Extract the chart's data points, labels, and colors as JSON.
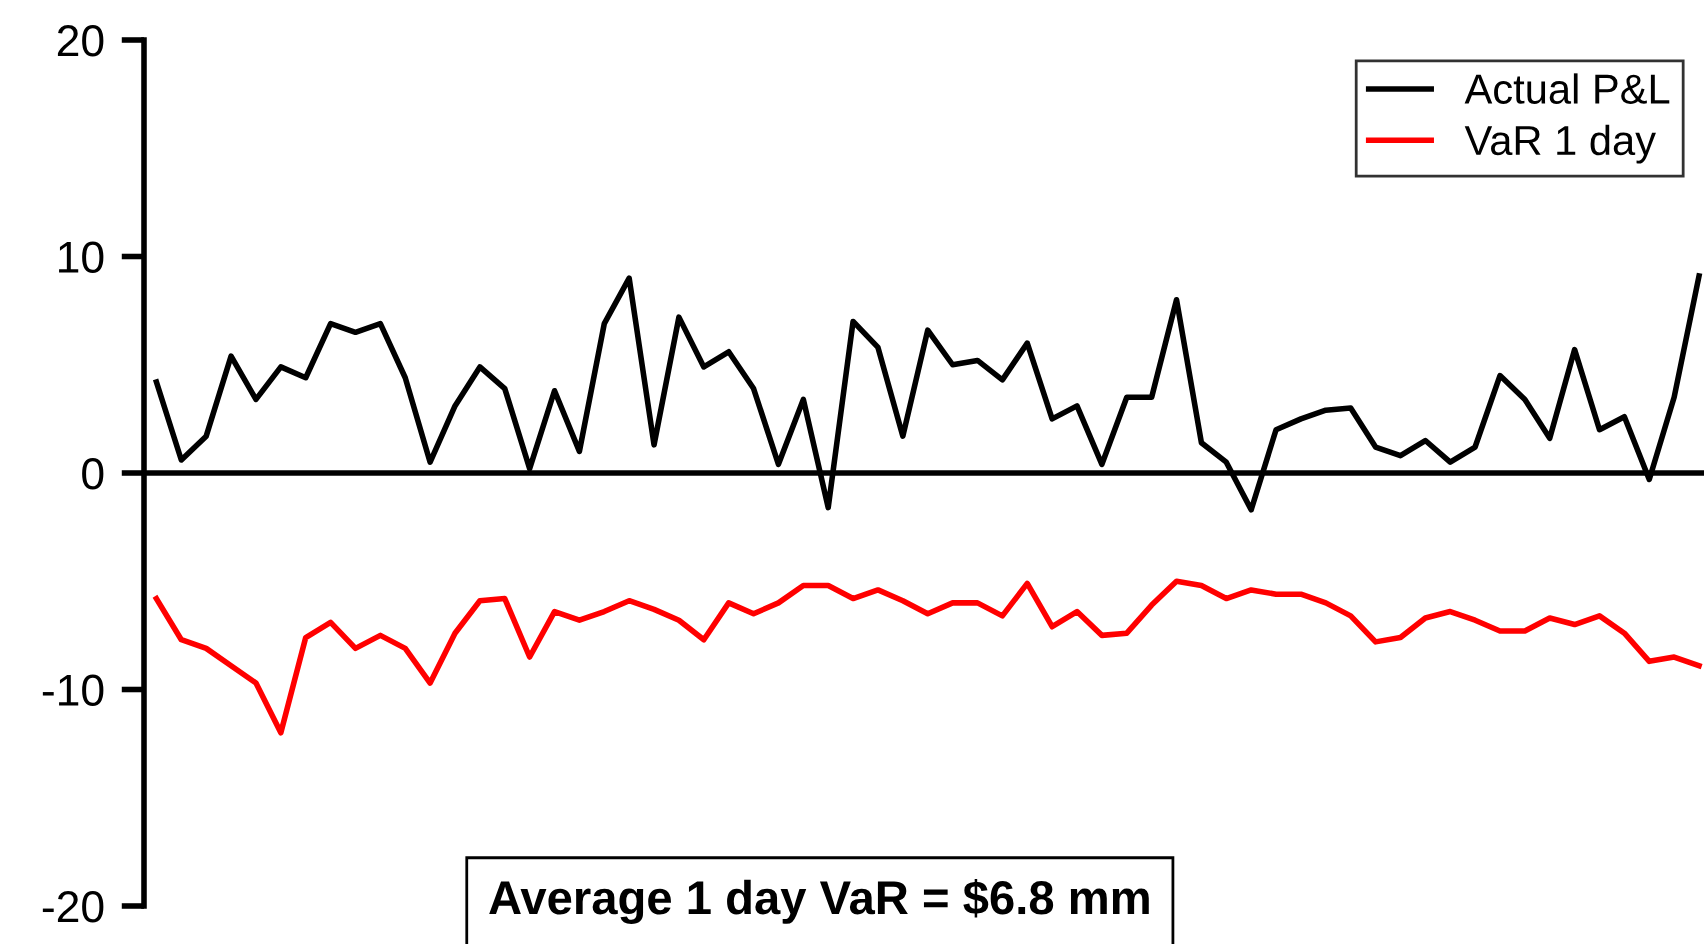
{
  "chart_data": {
    "type": "line",
    "categories": [
      null,
      null,
      null,
      null,
      null,
      null,
      null,
      null,
      null,
      null,
      null,
      null,
      null,
      null,
      null,
      null,
      null,
      null,
      null,
      null,
      null,
      null,
      null,
      null,
      null,
      null,
      null,
      null,
      null,
      null,
      null,
      null,
      null,
      null,
      null,
      null,
      null,
      null,
      null,
      null,
      null,
      null,
      null,
      null,
      null,
      null,
      null,
      null,
      null,
      null,
      null,
      null,
      null,
      null,
      null,
      null,
      null,
      null,
      null,
      null,
      null,
      null,
      null
    ],
    "series": [
      {
        "name": "Actual P&L",
        "color": "#000000",
        "values": [
          4.2,
          0.6,
          1.7,
          5.4,
          3.4,
          4.9,
          4.4,
          6.9,
          6.5,
          6.9,
          4.4,
          0.5,
          3.1,
          4.9,
          3.9,
          0.2,
          3.8,
          1.0,
          6.9,
          9.0,
          1.3,
          7.2,
          4.9,
          5.6,
          3.9,
          0.4,
          3.4,
          -1.6,
          7.0,
          5.8,
          1.7,
          6.6,
          5.0,
          5.2,
          4.3,
          6.0,
          2.5,
          3.1,
          0.4,
          3.5,
          3.5,
          8.0,
          1.4,
          0.5,
          -1.7,
          2.0,
          2.5,
          2.9,
          3.0,
          1.2,
          0.8,
          1.5,
          0.5,
          1.2,
          4.5,
          3.4,
          1.6,
          5.7,
          2.0,
          2.6,
          -0.3,
          3.5,
          9.1
        ]
      },
      {
        "name": "VaR 1 day",
        "color": "#ff0000",
        "values": [
          -5.8,
          -7.7,
          -8.1,
          -8.9,
          -9.7,
          -12.0,
          -7.6,
          -6.9,
          -8.1,
          -7.5,
          -8.1,
          -9.7,
          -7.4,
          -5.9,
          -5.8,
          -8.5,
          -6.4,
          -6.8,
          -6.4,
          -5.9,
          -6.3,
          -6.8,
          -7.7,
          -6.0,
          -6.5,
          -6.0,
          -5.2,
          -5.2,
          -5.8,
          -5.4,
          -5.9,
          -6.5,
          -6.0,
          -6.0,
          -6.6,
          -5.1,
          -7.1,
          -6.4,
          -7.5,
          -7.4,
          -6.1,
          -5.0,
          -5.2,
          -5.8,
          -5.4,
          -5.6,
          -5.6,
          -6.0,
          -6.6,
          -7.8,
          -7.6,
          -6.7,
          -6.4,
          -6.8,
          -7.3,
          -7.3,
          -6.7,
          -7.0,
          -6.6,
          -7.4,
          -8.7,
          -8.5,
          -8.9
        ]
      }
    ],
    "ylim": [
      -20,
      20
    ],
    "yticks": [
      -20,
      -10,
      0,
      10,
      20
    ],
    "grid": false,
    "ref_lines": [
      {
        "axis": "y",
        "value": 0,
        "color": "#000000"
      }
    ],
    "legend": "top right",
    "marker": "none",
    "line_style": "solid",
    "annotations": [
      "Average 1 day VaR = $6.8 mm"
    ]
  }
}
